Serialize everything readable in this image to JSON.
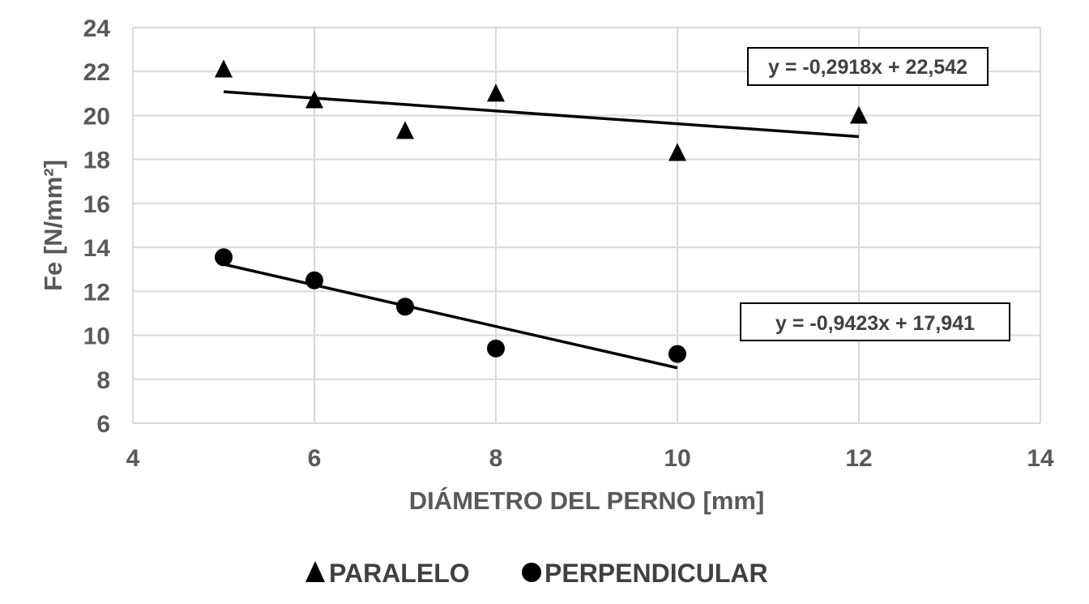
{
  "chart_data": {
    "type": "scatter",
    "xlabel": "DIÁMETRO DEL PERNO [mm]",
    "ylabel": "Fe  [N/mm²]",
    "xlim": [
      4,
      14
    ],
    "ylim": [
      6,
      24
    ],
    "xticks": [
      4,
      6,
      8,
      10,
      12,
      14
    ],
    "yticks": [
      6,
      8,
      10,
      12,
      14,
      16,
      18,
      20,
      22,
      24
    ],
    "grid": true,
    "legend_position": "bottom",
    "series": [
      {
        "name": "PARALELO",
        "marker": "triangle",
        "color": "#000000",
        "points": [
          {
            "x": 5,
            "y": 22.1
          },
          {
            "x": 6,
            "y": 20.7
          },
          {
            "x": 7,
            "y": 19.3
          },
          {
            "x": 8,
            "y": 21.0
          },
          {
            "x": 10,
            "y": 18.3
          },
          {
            "x": 12,
            "y": 20.0
          }
        ],
        "trendline": {
          "slope": -0.2918,
          "intercept": 22.542,
          "x_range": [
            5,
            12
          ]
        },
        "equation": "y = -0,2918x + 22,542"
      },
      {
        "name": "PERPENDICULAR",
        "marker": "circle",
        "color": "#000000",
        "points": [
          {
            "x": 5,
            "y": 13.55
          },
          {
            "x": 6,
            "y": 12.5
          },
          {
            "x": 7,
            "y": 11.3
          },
          {
            "x": 8,
            "y": 9.4
          },
          {
            "x": 10,
            "y": 9.15
          }
        ],
        "trendline": {
          "slope": -0.9423,
          "intercept": 17.941,
          "x_range": [
            5,
            10
          ]
        },
        "equation": "y = -0,9423x + 17,941"
      }
    ]
  }
}
